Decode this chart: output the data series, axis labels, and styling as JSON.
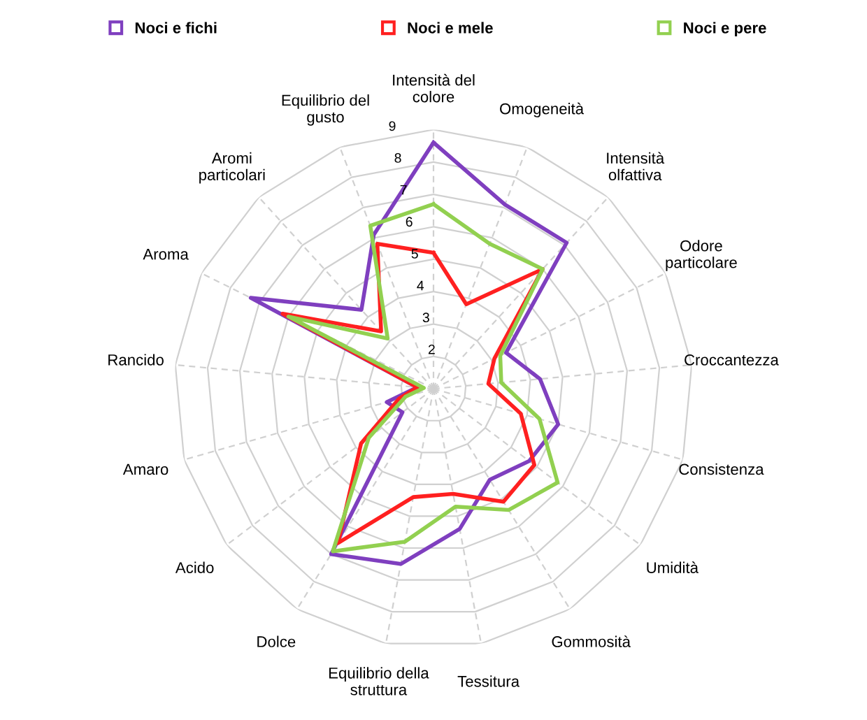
{
  "chart_data": {
    "type": "radar",
    "categories": [
      "Intensità del\ncolore",
      "Omogeneità",
      "Intensità\nolfattiva",
      "Odore\nparticolare",
      "Croccantezza",
      "Consistenza",
      "Umidità",
      "Gommosità",
      "Tessitura",
      "Equilibrio della\nstruttura",
      "Dolce",
      "Acido",
      "Amaro",
      "Rancido",
      "Aroma",
      "Aromi\nparticolari",
      "Equilibrio del\ngusto"
    ],
    "series": [
      {
        "name": "Noci e fichi",
        "color": "#7f3fbf",
        "values": [
          8.6,
          7.1,
          7.1,
          3.5,
          4.3,
          5.0,
          4.7,
          4.3,
          5.4,
          6.5,
          7.0,
          2.2,
          2.5,
          1.5,
          7.3,
          4.3,
          6.1
        ]
      },
      {
        "name": "Noci e mele",
        "color": "#ff2020",
        "values": [
          5.2,
          3.8,
          6.0,
          3.1,
          2.7,
          3.8,
          4.9,
          5.1,
          4.3,
          4.4,
          6.6,
          3.8,
          2.1,
          1.5,
          6.2,
          3.4,
          5.8
        ]
      },
      {
        "name": "Noci e pere",
        "color": "#92d050",
        "values": [
          6.7,
          5.8,
          6.0,
          3.3,
          3.1,
          4.4,
          5.8,
          5.4,
          4.7,
          5.8,
          6.9,
          3.5,
          1.9,
          1.3,
          6.0,
          3.1,
          6.4
        ]
      }
    ],
    "ylim": [
      1,
      9
    ],
    "yticks": [
      2,
      3,
      4,
      5,
      6,
      7,
      8,
      9
    ],
    "grid": true,
    "legend": "top",
    "line_style": "solid"
  }
}
